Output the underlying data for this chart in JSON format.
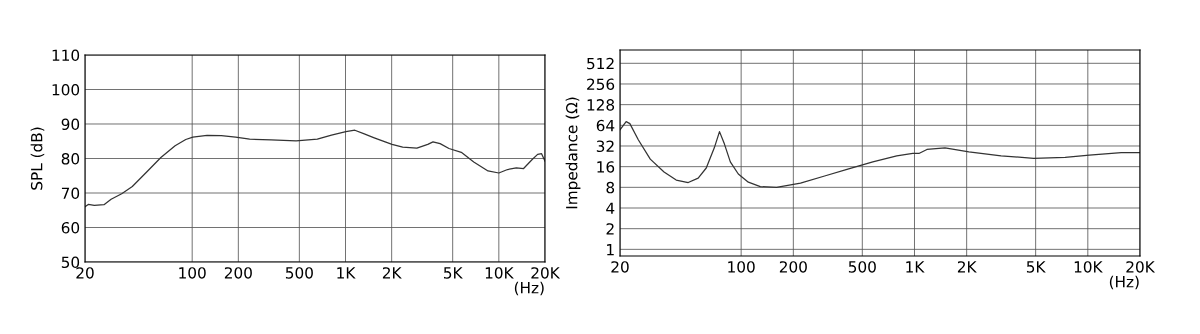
{
  "chart_data": [
    {
      "type": "line",
      "ylabel": "SPL (dB)",
      "xlabel": "(Hz)",
      "log": "x",
      "grid": true,
      "marker": "none",
      "line_style": "solid",
      "xlim": [
        20,
        20000
      ],
      "ylim": [
        50,
        110
      ],
      "xticks": [
        20,
        100,
        200,
        500,
        {
          "value": 1000,
          "label": "1K"
        },
        {
          "value": 2000,
          "label": "2K"
        },
        {
          "value": 5000,
          "label": "5K"
        },
        {
          "value": 10000,
          "label": "10K"
        },
        {
          "value": 20000,
          "label": "20K"
        }
      ],
      "yticks": [
        50,
        60,
        70,
        80,
        90,
        100,
        110
      ],
      "x": [
        20,
        21,
        23,
        26.6,
        29.6,
        34.7,
        40.7,
        50.5,
        62.5,
        77.4,
        90.8,
        101,
        125,
        155,
        192,
        237,
        327,
        476,
        655,
        810,
        1006,
        1150,
        1313,
        1540,
        2010,
        2360,
        2920,
        3440,
        3720,
        4140,
        4730,
        5690,
        6860,
        8500,
        10000,
        11400,
        13000,
        14500,
        16500,
        17900,
        19000,
        20000
      ],
      "series": [
        {
          "color": "#333333",
          "values": [
            66,
            66.7,
            66.4,
            66.6,
            68.2,
            69.8,
            71.9,
            76.1,
            80.3,
            83.7,
            85.5,
            86.2,
            86.7,
            86.6,
            86.2,
            85.6,
            85.4,
            85.1,
            85.6,
            86.8,
            87.8,
            88.2,
            87.2,
            86,
            84.1,
            83.3,
            83,
            84.1,
            84.8,
            84.3,
            82.9,
            81.8,
            79,
            76.4,
            75.8,
            76.8,
            77.3,
            77.1,
            79.7,
            81.2,
            81.4,
            79.2
          ]
        }
      ]
    },
    {
      "type": "line",
      "ylabel": "Impedance (Ω)",
      "xlabel": "(Hz)",
      "log": "xy",
      "grid": true,
      "marker": "none",
      "line_style": "solid",
      "xlim": [
        20,
        20000
      ],
      "ylim": [
        0.8,
        800
      ],
      "xticks": [
        20,
        100,
        200,
        500,
        {
          "value": 1000,
          "label": "1K"
        },
        {
          "value": 2000,
          "label": "2K"
        },
        {
          "value": 5000,
          "label": "5K"
        },
        {
          "value": 10000,
          "label": "10K"
        },
        {
          "value": 20000,
          "label": "20K"
        }
      ],
      "yticks": [
        1,
        2,
        4,
        8,
        16,
        32,
        64,
        128,
        256,
        512
      ],
      "x": [
        20,
        21.7,
        22.8,
        25.5,
        29.9,
        35.9,
        42.2,
        49.5,
        56.5,
        62.9,
        70,
        75,
        80,
        86.6,
        96.3,
        110,
        129,
        160,
        220,
        303,
        417,
        575,
        790,
        978,
        1060,
        1180,
        1500,
        2060,
        3160,
        4870,
        7400,
        10200,
        15600,
        20000
      ],
      "series": [
        {
          "color": "#333333",
          "values": [
            55,
            72.5,
            67.8,
            39.4,
            20.6,
            13.4,
            10.2,
            9.4,
            10.9,
            15.3,
            30.1,
            51.8,
            34.4,
            18.8,
            12.5,
            9.5,
            8.2,
            8.0,
            9.2,
            11.7,
            14.9,
            18.8,
            23,
            24.9,
            24.9,
            28.5,
            30.1,
            26.3,
            23,
            21.2,
            21.8,
            23.6,
            25.6,
            25.6
          ]
        }
      ]
    }
  ]
}
